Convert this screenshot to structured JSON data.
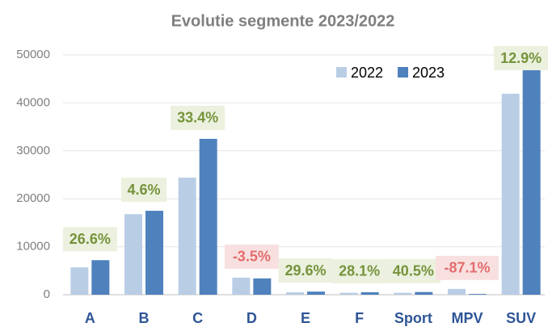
{
  "chart_data": {
    "type": "bar",
    "title": "Evolutie segmente 2023/2022",
    "categories": [
      "A",
      "B",
      "C",
      "D",
      "E",
      "F",
      "Sport",
      "MPV",
      "SUV"
    ],
    "series": [
      {
        "name": "2022",
        "color": "#b9cde5",
        "values": [
          5700,
          16800,
          24400,
          3550,
          500,
          400,
          400,
          1200,
          41900
        ]
      },
      {
        "name": "2023",
        "color": "#4f81bd",
        "values": [
          7200,
          17500,
          32500,
          3400,
          650,
          520,
          560,
          155,
          47000
        ]
      }
    ],
    "growth": [
      26.6,
      4.6,
      33.4,
      -3.5,
      29.6,
      28.1,
      40.5,
      -87.1,
      12.9
    ],
    "growth_labels": [
      "26.6%",
      "4.6%",
      "33.4%",
      "-3.5%",
      "29.6%",
      "28.1%",
      "40.5%",
      "-87.1%",
      "12.9%"
    ],
    "positive_color": "#76933c",
    "positive_fill": "#ebf1de",
    "negative_color": "#e46c6c",
    "negative_fill": "#f8e0e0",
    "ylim": [
      0,
      50000
    ],
    "yticks": [
      0,
      10000,
      20000,
      30000,
      40000,
      50000
    ],
    "grid": true,
    "legend": "top-right"
  }
}
